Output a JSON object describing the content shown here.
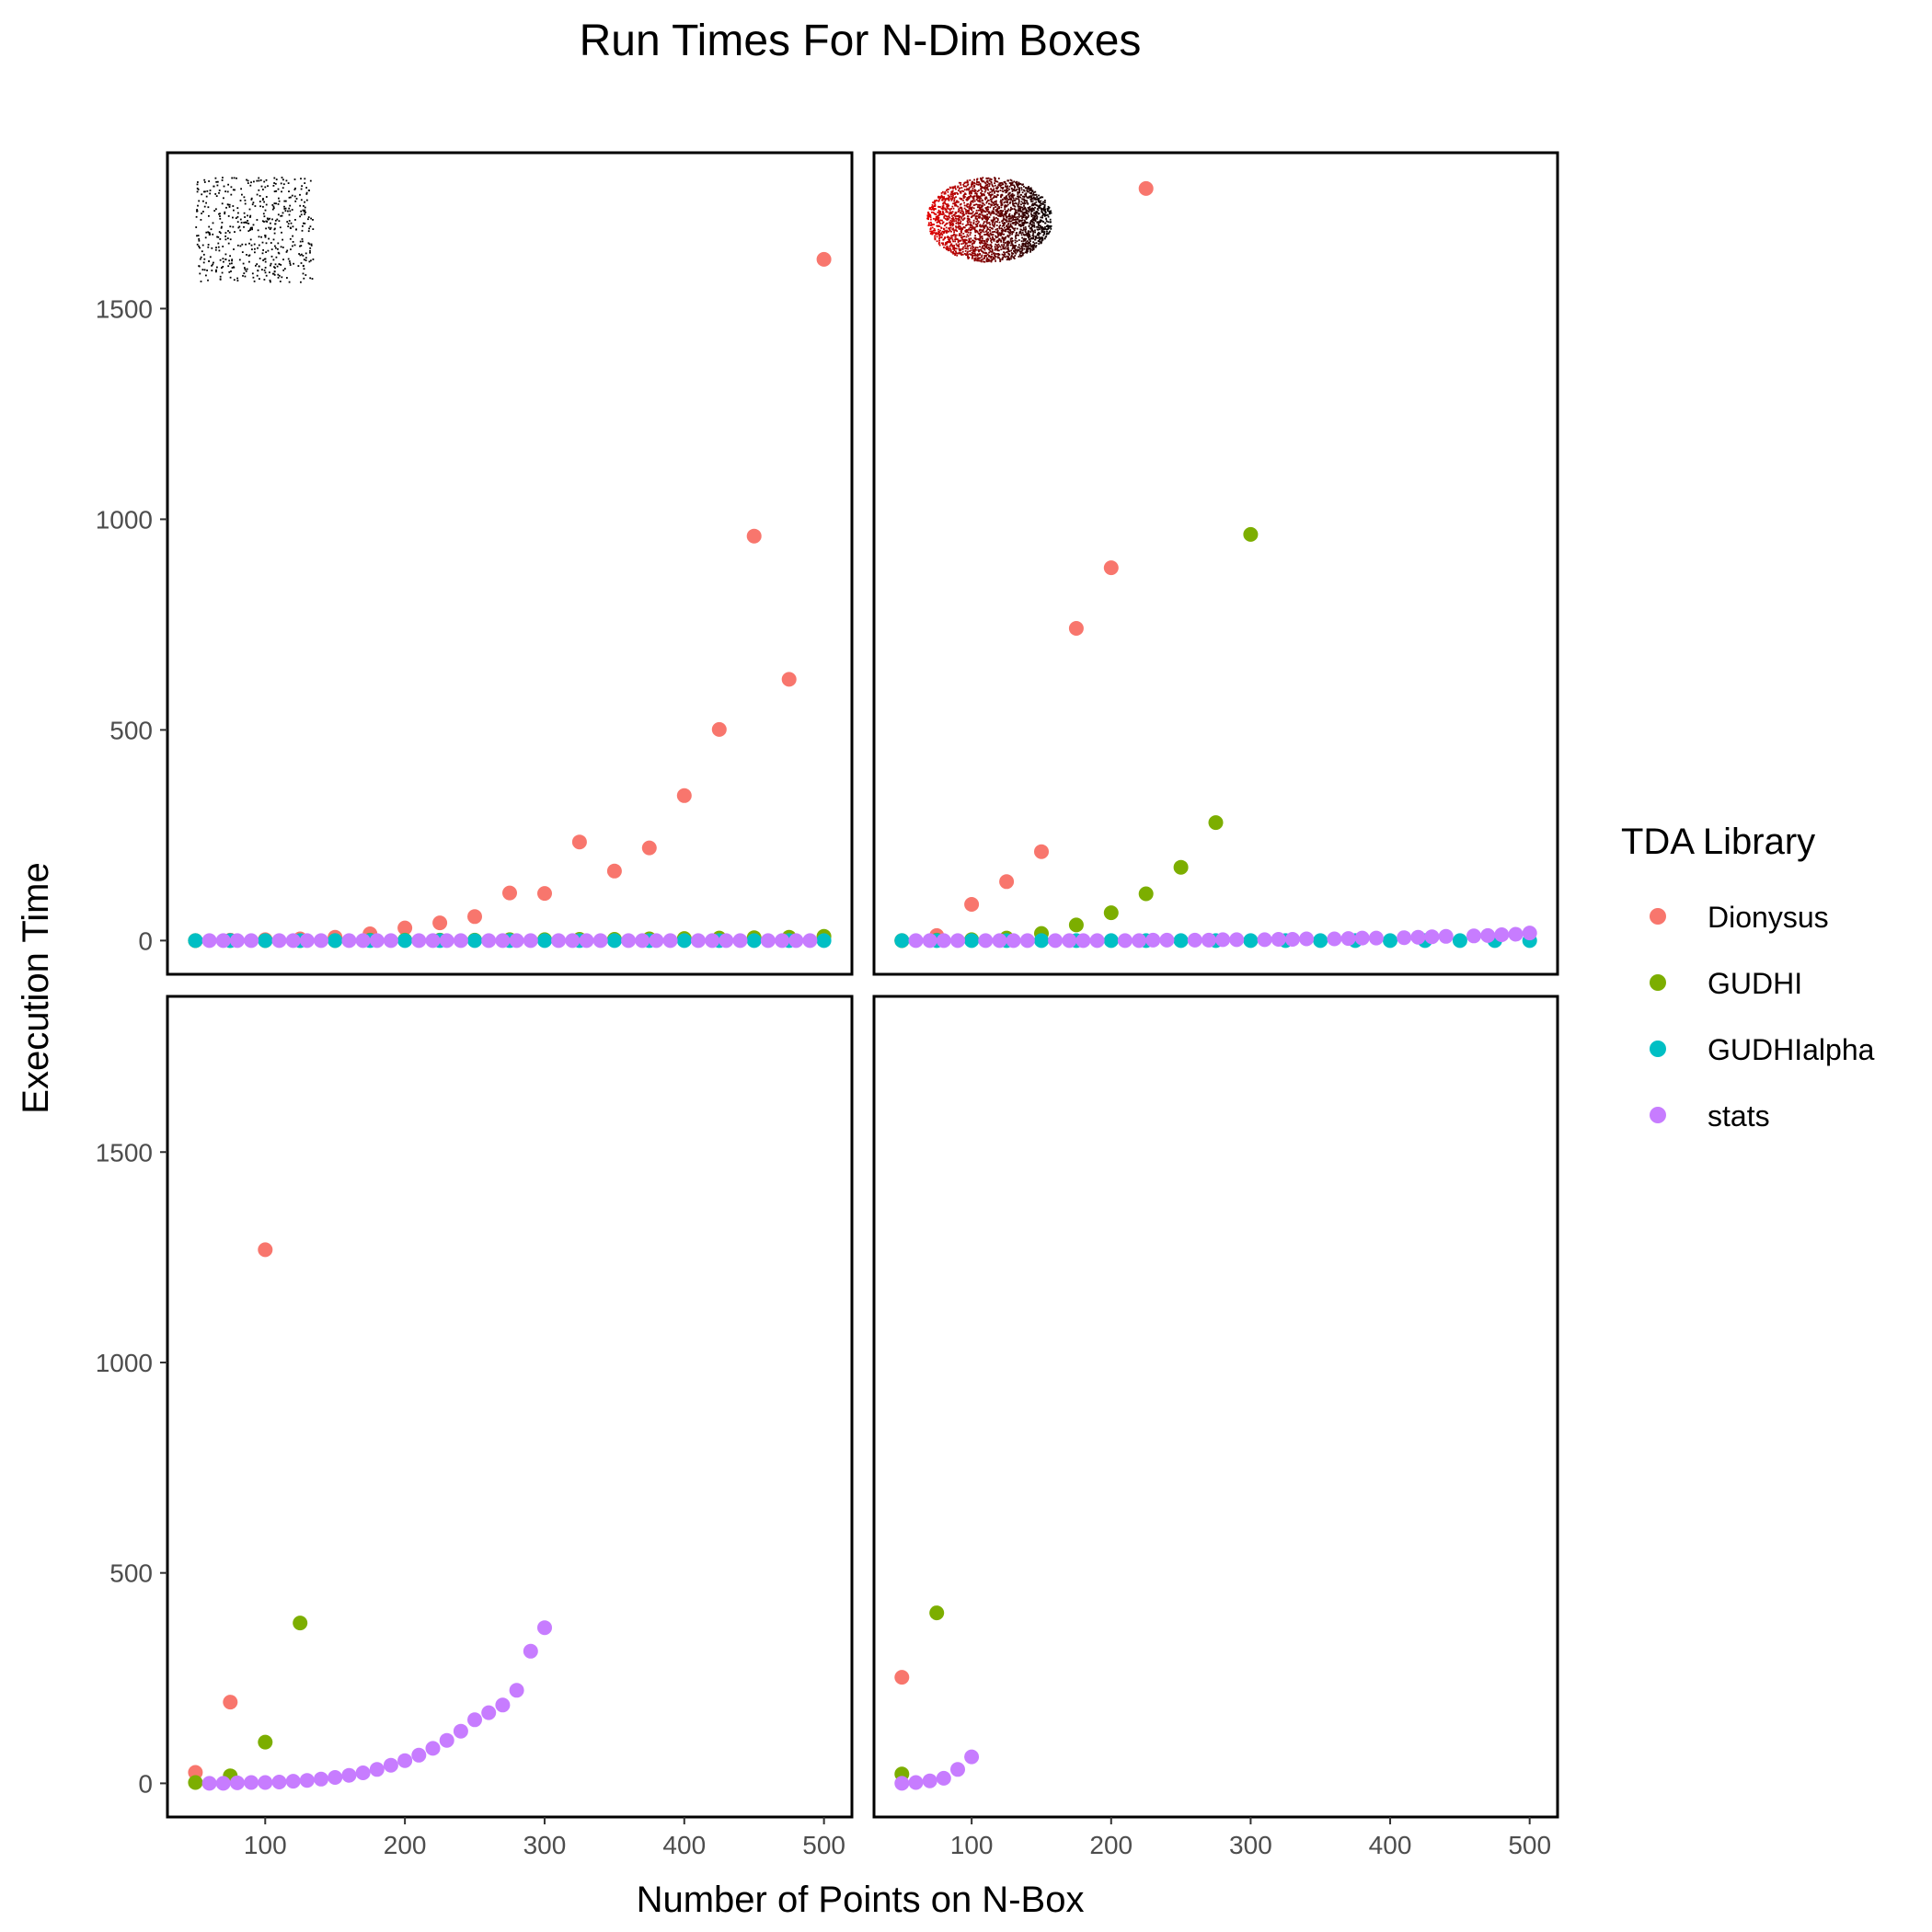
{
  "chart_data": {
    "type": "scatter",
    "title": "Run Times For N-Dim Boxes",
    "xlabel": "Number of Points on N-Box",
    "ylabel": "Execution Time",
    "xlim": [
      30,
      520
    ],
    "ylim": [
      -80,
      1870
    ],
    "xticks": [
      100,
      200,
      300,
      400,
      500
    ],
    "yticks": [
      0,
      500,
      1000,
      1500
    ],
    "grid": false,
    "legend": {
      "title": "TDA Library",
      "position": "right",
      "entries": [
        {
          "name": "Dionysus",
          "color": "#F8766D"
        },
        {
          "name": "GUDHI",
          "color": "#7CAE00"
        },
        {
          "name": "GUDHIalpha",
          "color": "#00BFC4"
        },
        {
          "name": "stats",
          "color": "#C77CFF"
        }
      ]
    },
    "panels": [
      {
        "position": "top-left",
        "inset": "uniform scatter of points in a square",
        "series": [
          {
            "name": "Dionysus",
            "points": [
              [
                50,
                0
              ],
              [
                75,
                1
              ],
              [
                100,
                2
              ],
              [
                125,
                4
              ],
              [
                150,
                8
              ],
              [
                175,
                16
              ],
              [
                200,
                30
              ],
              [
                225,
                42
              ],
              [
                250,
                57
              ],
              [
                275,
                113
              ],
              [
                300,
                112
              ],
              [
                325,
                234
              ],
              [
                350,
                165
              ],
              [
                375,
                220
              ],
              [
                400,
                344
              ],
              [
                425,
                501
              ],
              [
                450,
                960
              ],
              [
                475,
                620
              ],
              [
                500,
                1617
              ]
            ]
          },
          {
            "name": "GUDHI",
            "points": [
              [
                50,
                0
              ],
              [
                75,
                0
              ],
              [
                100,
                0
              ],
              [
                125,
                0
              ],
              [
                150,
                0
              ],
              [
                175,
                1
              ],
              [
                200,
                1
              ],
              [
                225,
                1
              ],
              [
                250,
                1
              ],
              [
                275,
                2
              ],
              [
                300,
                2
              ],
              [
                325,
                3
              ],
              [
                350,
                3
              ],
              [
                375,
                4
              ],
              [
                400,
                5
              ],
              [
                425,
                6
              ],
              [
                450,
                7
              ],
              [
                475,
                8
              ],
              [
                500,
                10
              ]
            ]
          },
          {
            "name": "GUDHIalpha",
            "points": [
              [
                50,
                0
              ],
              [
                75,
                0
              ],
              [
                100,
                0
              ],
              [
                125,
                0
              ],
              [
                150,
                0
              ],
              [
                175,
                0
              ],
              [
                200,
                0
              ],
              [
                225,
                0
              ],
              [
                250,
                0
              ],
              [
                275,
                0
              ],
              [
                300,
                0
              ],
              [
                325,
                0
              ],
              [
                350,
                0
              ],
              [
                375,
                0
              ],
              [
                400,
                0
              ],
              [
                425,
                0
              ],
              [
                450,
                0
              ],
              [
                475,
                0
              ],
              [
                500,
                0
              ]
            ]
          },
          {
            "name": "stats",
            "points": [
              [
                60,
                0
              ],
              [
                70,
                0
              ],
              [
                80,
                0
              ],
              [
                90,
                0
              ],
              [
                110,
                0
              ],
              [
                120,
                0
              ],
              [
                130,
                0
              ],
              [
                140,
                0
              ],
              [
                160,
                0
              ],
              [
                170,
                0
              ],
              [
                180,
                0
              ],
              [
                190,
                0
              ],
              [
                210,
                0
              ],
              [
                220,
                0
              ],
              [
                230,
                0
              ],
              [
                240,
                0
              ],
              [
                260,
                0
              ],
              [
                270,
                0
              ],
              [
                280,
                0
              ],
              [
                290,
                0
              ],
              [
                310,
                0
              ],
              [
                320,
                0
              ],
              [
                330,
                0
              ],
              [
                340,
                0
              ],
              [
                360,
                0
              ],
              [
                370,
                0
              ],
              [
                380,
                0
              ],
              [
                390,
                0
              ],
              [
                410,
                0
              ],
              [
                420,
                0
              ],
              [
                430,
                0
              ],
              [
                440,
                0
              ],
              [
                460,
                0
              ],
              [
                470,
                0
              ],
              [
                480,
                0
              ],
              [
                490,
                0
              ]
            ]
          }
        ]
      },
      {
        "position": "top-right",
        "inset": "dense cloud of points shaded red to black",
        "series": [
          {
            "name": "Dionysus",
            "points": [
              [
                50,
                0
              ],
              [
                75,
                12
              ],
              [
                100,
                86
              ],
              [
                125,
                140
              ],
              [
                150,
                211
              ],
              [
                175,
                741
              ],
              [
                200,
                885
              ],
              [
                225,
                1785
              ]
            ]
          },
          {
            "name": "GUDHI",
            "points": [
              [
                50,
                0
              ],
              [
                75,
                1
              ],
              [
                100,
                2
              ],
              [
                125,
                6
              ],
              [
                150,
                17
              ],
              [
                175,
                37
              ],
              [
                200,
                66
              ],
              [
                225,
                111
              ],
              [
                250,
                174
              ],
              [
                275,
                280
              ],
              [
                300,
                964
              ]
            ]
          },
          {
            "name": "GUDHIalpha",
            "points": [
              [
                50,
                0
              ],
              [
                75,
                0
              ],
              [
                100,
                0
              ],
              [
                125,
                0
              ],
              [
                150,
                0
              ],
              [
                175,
                0
              ],
              [
                200,
                0
              ],
              [
                225,
                0
              ],
              [
                250,
                0
              ],
              [
                275,
                0
              ],
              [
                300,
                0
              ],
              [
                325,
                0
              ],
              [
                350,
                0
              ],
              [
                375,
                0
              ],
              [
                400,
                0
              ],
              [
                425,
                0
              ],
              [
                450,
                0
              ],
              [
                475,
                0
              ],
              [
                500,
                0
              ]
            ]
          },
          {
            "name": "stats",
            "points": [
              [
                60,
                0
              ],
              [
                70,
                0
              ],
              [
                80,
                0
              ],
              [
                90,
                0
              ],
              [
                110,
                0
              ],
              [
                120,
                0
              ],
              [
                130,
                0
              ],
              [
                140,
                0
              ],
              [
                160,
                0
              ],
              [
                170,
                0
              ],
              [
                180,
                0
              ],
              [
                190,
                0
              ],
              [
                210,
                0
              ],
              [
                220,
                0
              ],
              [
                230,
                1
              ],
              [
                240,
                1
              ],
              [
                260,
                1
              ],
              [
                270,
                1
              ],
              [
                280,
                2
              ],
              [
                290,
                2
              ],
              [
                310,
                2
              ],
              [
                320,
                3
              ],
              [
                330,
                3
              ],
              [
                340,
                4
              ],
              [
                360,
                4
              ],
              [
                370,
                5
              ],
              [
                380,
                6
              ],
              [
                390,
                6
              ],
              [
                410,
                7
              ],
              [
                420,
                8
              ],
              [
                430,
                9
              ],
              [
                440,
                10
              ],
              [
                460,
                11
              ],
              [
                470,
                12
              ],
              [
                480,
                14
              ],
              [
                490,
                15
              ],
              [
                500,
                18
              ]
            ]
          }
        ]
      },
      {
        "position": "bottom-left",
        "inset": "",
        "series": [
          {
            "name": "Dionysus",
            "points": [
              [
                50,
                26
              ],
              [
                75,
                193
              ],
              [
                100,
                1268
              ]
            ]
          },
          {
            "name": "GUDHI",
            "points": [
              [
                50,
                2
              ],
              [
                75,
                18
              ],
              [
                100,
                98
              ],
              [
                125,
                381
              ]
            ]
          },
          {
            "name": "GUDHIalpha",
            "points": []
          },
          {
            "name": "stats",
            "points": [
              [
                60,
                0
              ],
              [
                70,
                0
              ],
              [
                80,
                1
              ],
              [
                90,
                2
              ],
              [
                100,
                2
              ],
              [
                110,
                3
              ],
              [
                120,
                5
              ],
              [
                130,
                7
              ],
              [
                140,
                10
              ],
              [
                150,
                14
              ],
              [
                160,
                19
              ],
              [
                170,
                25
              ],
              [
                180,
                33
              ],
              [
                190,
                43
              ],
              [
                200,
                54
              ],
              [
                210,
                67
              ],
              [
                220,
                83
              ],
              [
                230,
                102
              ],
              [
                240,
                124
              ],
              [
                250,
                151
              ],
              [
                260,
                168
              ],
              [
                270,
                186
              ],
              [
                280,
                221
              ],
              [
                290,
                314
              ],
              [
                300,
                370
              ]
            ]
          }
        ]
      },
      {
        "position": "bottom-right",
        "inset": "",
        "series": [
          {
            "name": "Dionysus",
            "points": [
              [
                50,
                252
              ]
            ]
          },
          {
            "name": "GUDHI",
            "points": [
              [
                50,
                22
              ],
              [
                75,
                405
              ]
            ]
          },
          {
            "name": "GUDHIalpha",
            "points": []
          },
          {
            "name": "stats",
            "points": [
              [
                50,
                0
              ],
              [
                60,
                2
              ],
              [
                70,
                6
              ],
              [
                80,
                12
              ],
              [
                90,
                33
              ],
              [
                100,
                63
              ]
            ]
          }
        ]
      }
    ]
  }
}
